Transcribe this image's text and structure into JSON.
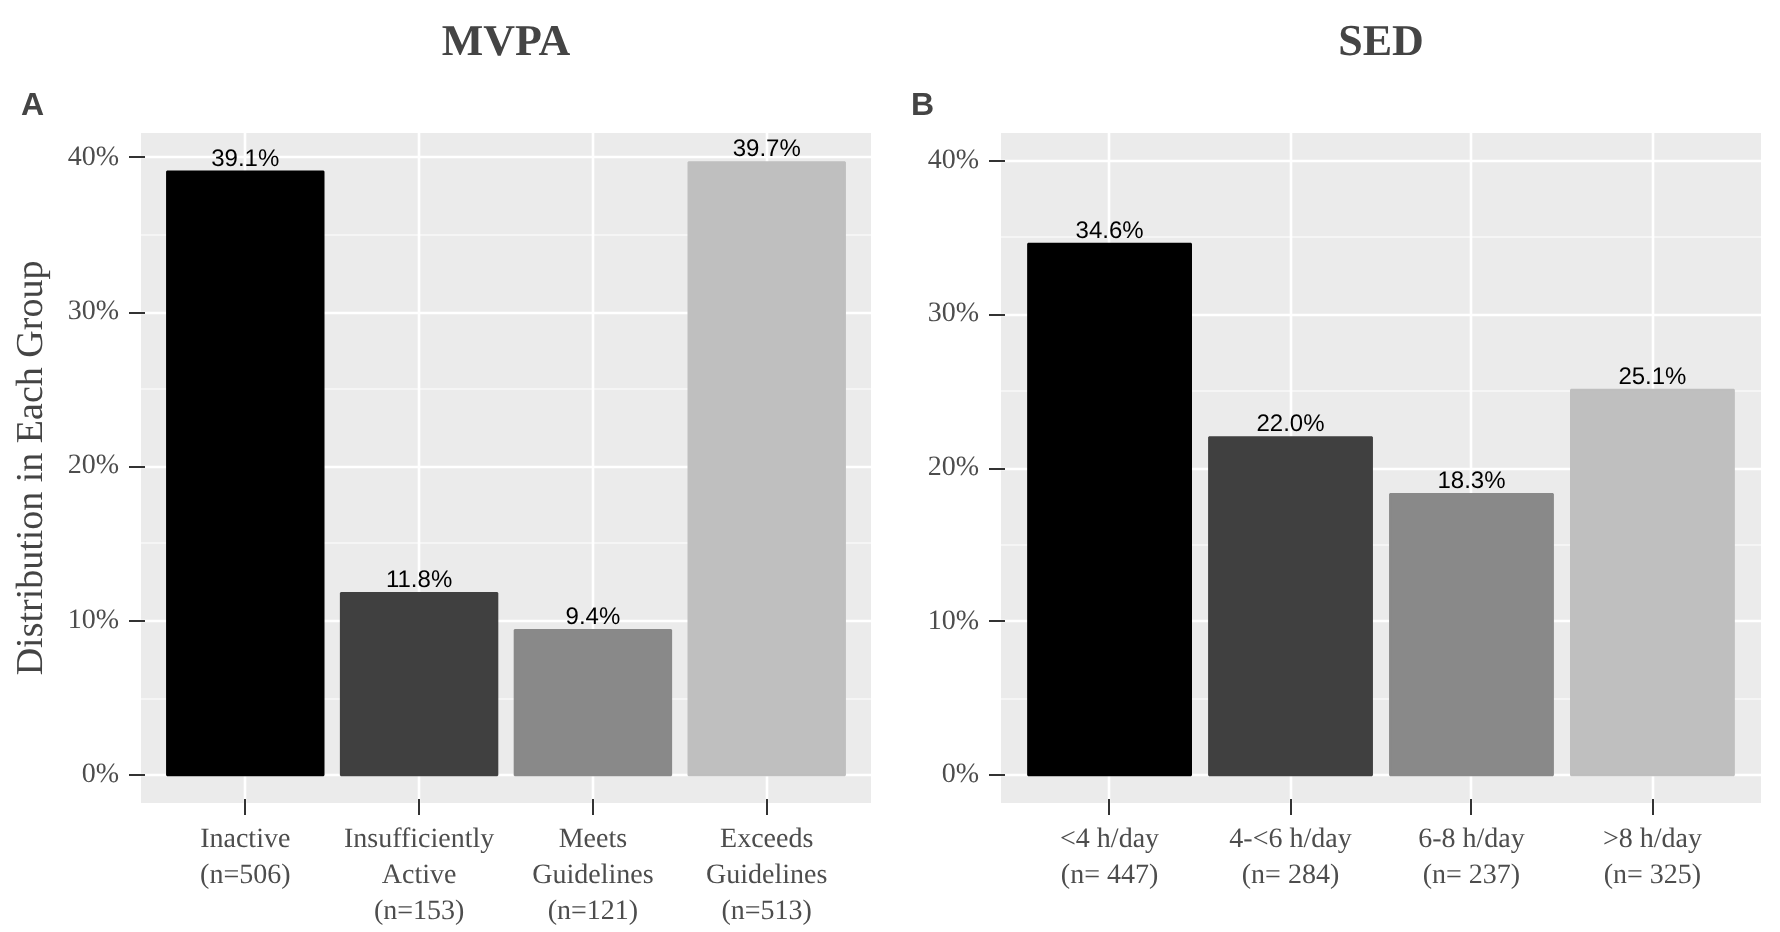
{
  "chart_data": [
    {
      "type": "bar",
      "title": "MVPA",
      "ylabel": "Distribution in Each Group",
      "annotations": [
        "A"
      ],
      "categories": [
        "Inactive\n(n=506)",
        "Insufficiently\nActive\n(n=153)",
        "Meets\nGuidelines\n(n=121)",
        "Exceeds\nGuidelines\n(n=513)"
      ],
      "values": [
        39.1,
        11.8,
        9.4,
        39.7
      ],
      "colors": [
        "#000000",
        "#404040",
        "#898989",
        "#bfbfbf"
      ],
      "value_labels": [
        "39.1%",
        "11.8%",
        "9.4%",
        "39.7%"
      ],
      "ylim": [
        -1.8,
        41.6
      ],
      "yticks": [
        {
          "value": 0,
          "label": "0%"
        },
        {
          "value": 10,
          "label": "10%"
        },
        {
          "value": 20,
          "label": "20%"
        },
        {
          "value": 30,
          "label": "30%"
        },
        {
          "value": 40,
          "label": "40%"
        }
      ],
      "grid": true
    },
    {
      "type": "bar",
      "title": "SED",
      "annotations": [
        "B"
      ],
      "categories": [
        "<4 h/day\n(n= 447)",
        "4-<6 h/day\n(n= 284)",
        "6-8 h/day\n(n= 237)",
        ">8 h/day\n(n= 325)"
      ],
      "values": [
        34.6,
        22.0,
        18.3,
        25.1
      ],
      "colors": [
        "#000000",
        "#404040",
        "#898989",
        "#bfbfbf"
      ],
      "value_labels": [
        "34.6%",
        "22.0%",
        "18.3%",
        "25.1%"
      ],
      "ylim": [
        -1.8,
        41.8
      ],
      "yticks": [
        {
          "value": 0,
          "label": "0%"
        },
        {
          "value": 10,
          "label": "10%"
        },
        {
          "value": 20,
          "label": "20%"
        },
        {
          "value": 30,
          "label": "30%"
        },
        {
          "value": 40,
          "label": "40%"
        }
      ],
      "grid": true
    }
  ]
}
